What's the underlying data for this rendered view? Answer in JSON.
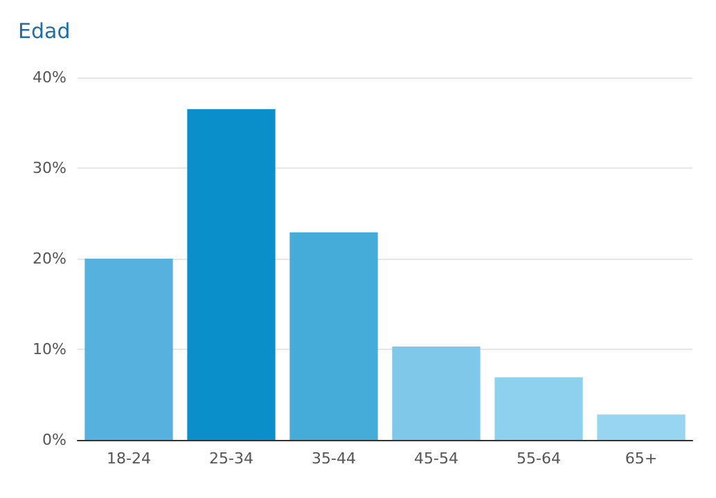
{
  "chart_data": {
    "type": "bar",
    "title": "Edad",
    "categories": [
      "18-24",
      "25-34",
      "35-44",
      "45-54",
      "55-64",
      "65+"
    ],
    "values": [
      20,
      36.5,
      22.9,
      10.3,
      6.9,
      2.8
    ],
    "colors": [
      "#56b1df",
      "#0a8fcb",
      "#45acd9",
      "#7fc8ea",
      "#8ed1ef",
      "#97d5f0"
    ],
    "ylim": [
      0,
      40
    ],
    "yticks": [
      {
        "value": 0,
        "label": "0%"
      },
      {
        "value": 10,
        "label": "10%"
      },
      {
        "value": 20,
        "label": "20%"
      },
      {
        "value": 30,
        "label": "30%"
      },
      {
        "value": 40,
        "label": "40%"
      }
    ],
    "grid": "y"
  }
}
